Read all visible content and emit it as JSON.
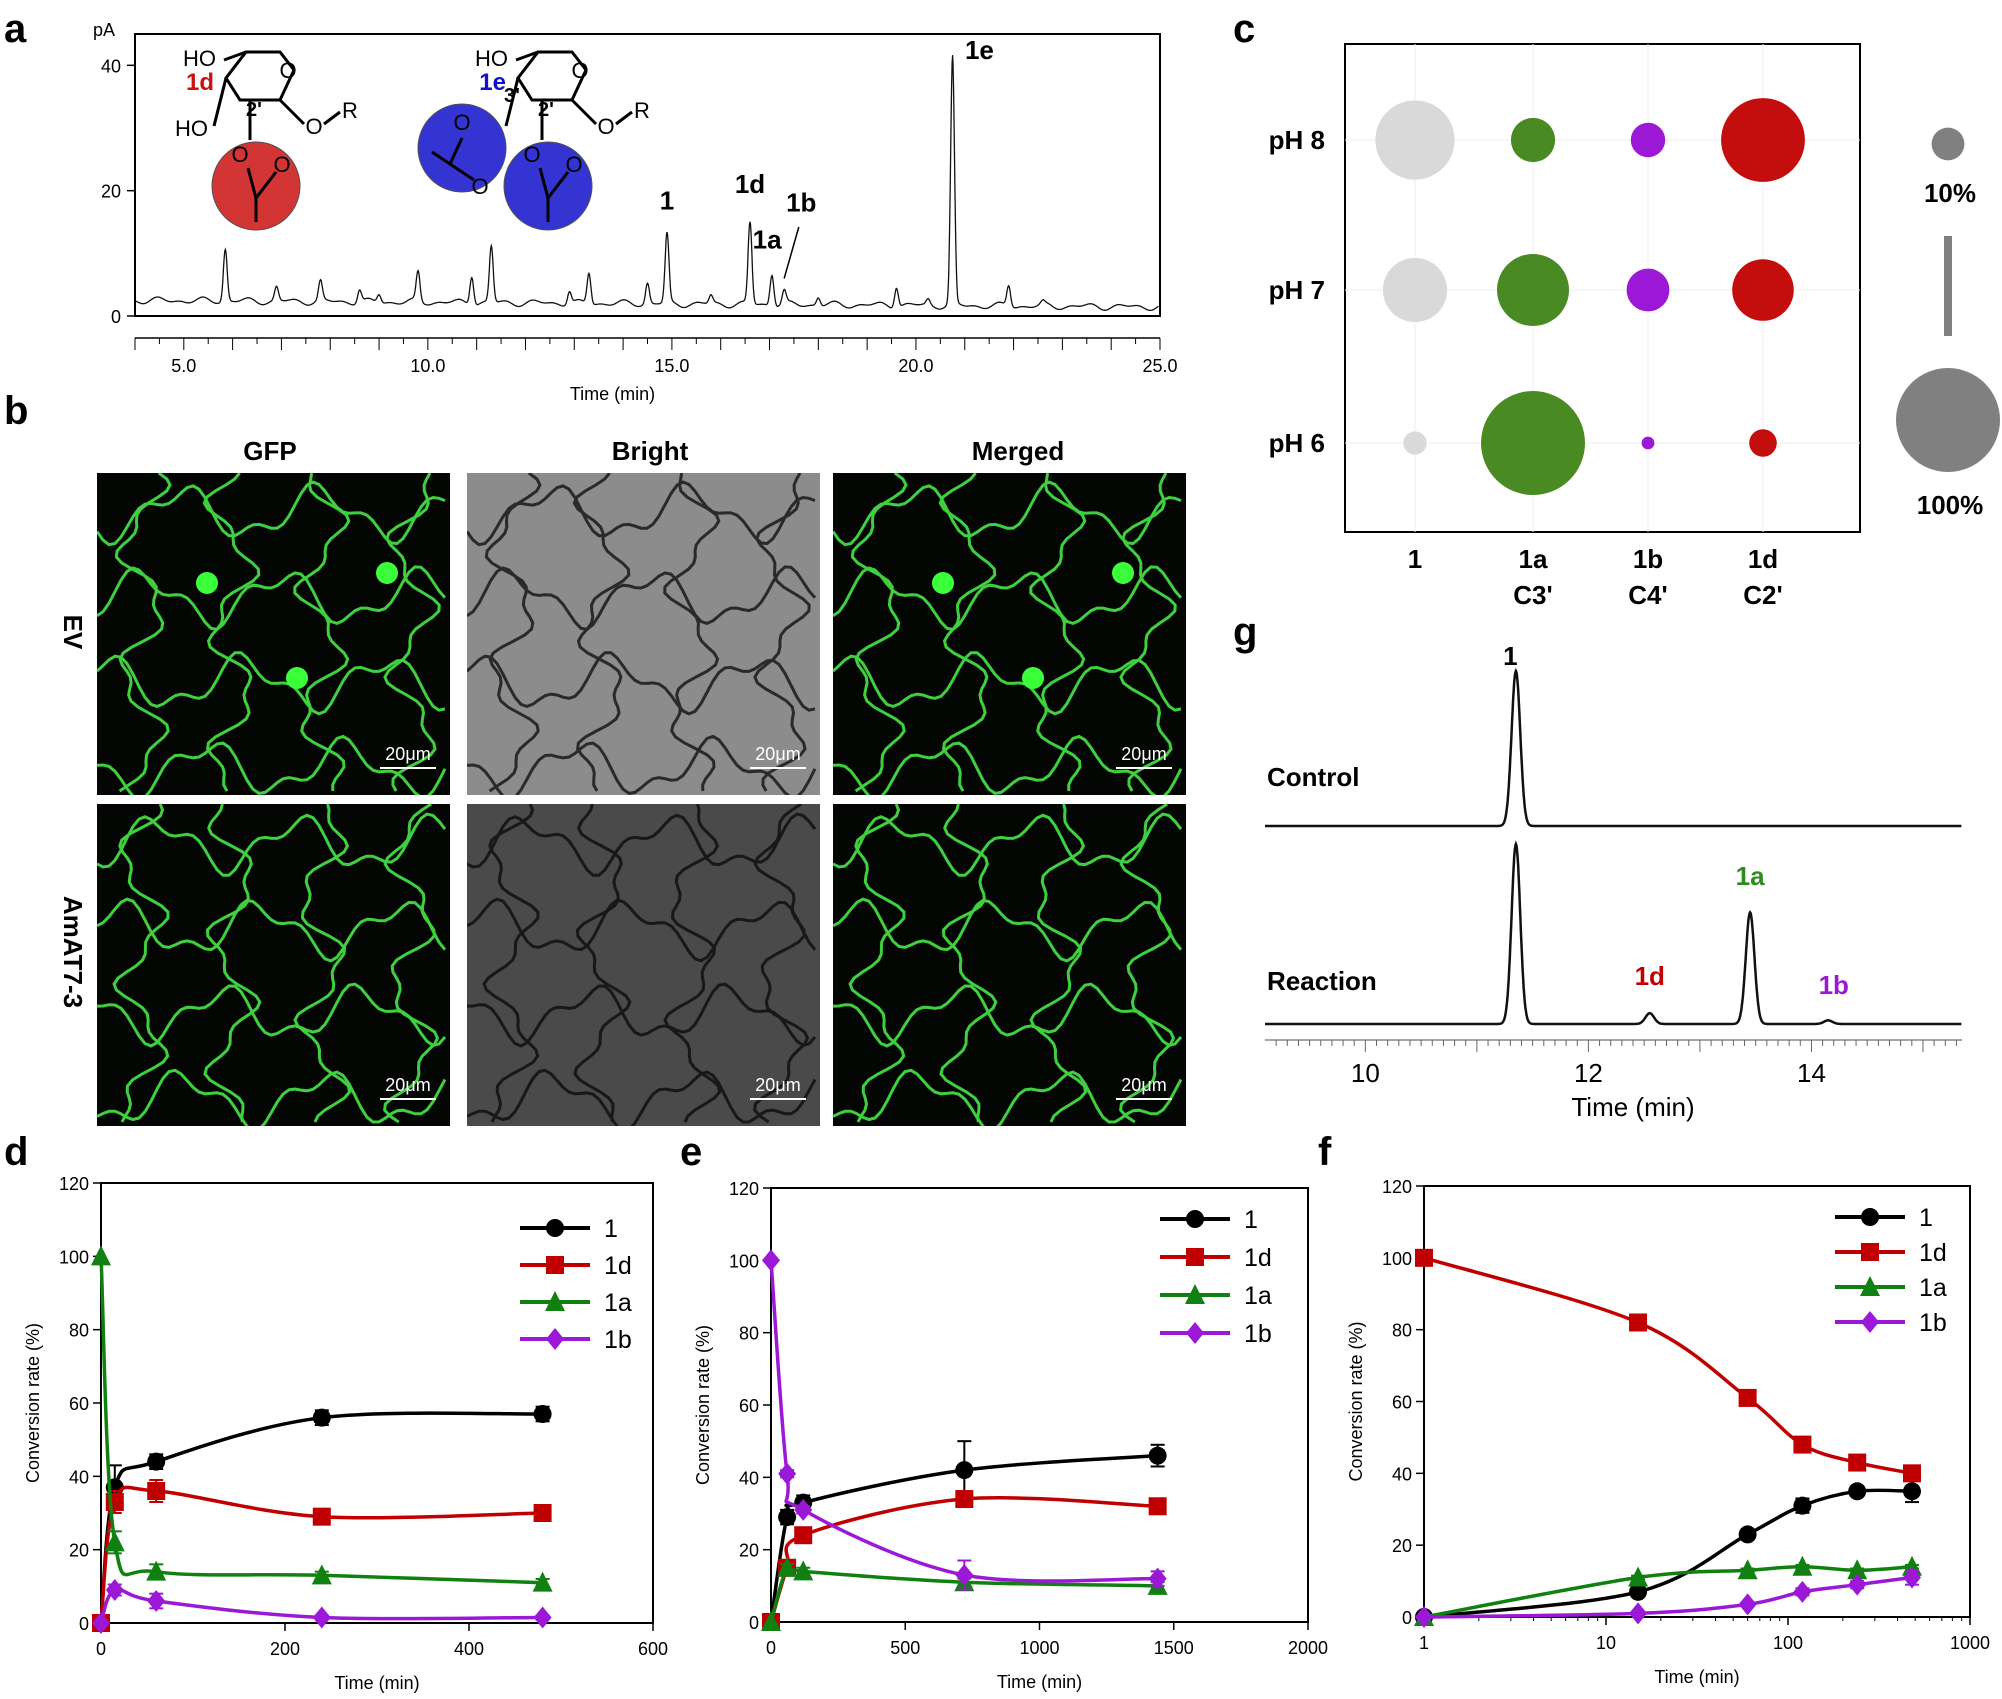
{
  "panels": {
    "a": {
      "label": "a",
      "chart_data": {
        "type": "line",
        "yunit": "pA",
        "xlabel": "Time (min)",
        "xlim": [
          4,
          25
        ],
        "ylim": [
          0,
          45
        ],
        "xticks": [
          "5.0",
          "10.0",
          "15.0",
          "20.0",
          "25.0"
        ],
        "xtick_values": [
          5,
          10,
          15,
          20,
          25
        ],
        "yticks": [
          "0",
          "20",
          "40"
        ],
        "ytick_values": [
          0,
          20,
          40
        ],
        "baseline": 2.5,
        "peaks": [
          {
            "x": 5.85,
            "h": 10.8
          },
          {
            "x": 6.9,
            "h": 4.7
          },
          {
            "x": 7.8,
            "h": 5.6
          },
          {
            "x": 8.6,
            "h": 4.5
          },
          {
            "x": 9.0,
            "h": 3.8
          },
          {
            "x": 9.8,
            "h": 7.2
          },
          {
            "x": 10.9,
            "h": 7.0
          },
          {
            "x": 11.3,
            "h": 11.4
          },
          {
            "x": 12.9,
            "h": 4.5
          },
          {
            "x": 13.3,
            "h": 7.4
          },
          {
            "x": 14.5,
            "h": 5.8
          },
          {
            "x": 14.9,
            "h": 13.5
          },
          {
            "x": 15.8,
            "h": 3.8
          },
          {
            "x": 16.6,
            "h": 15.5
          },
          {
            "x": 17.05,
            "h": 7.5
          },
          {
            "x": 17.3,
            "h": 4.6
          },
          {
            "x": 18.0,
            "h": 3.8
          },
          {
            "x": 19.6,
            "h": 5.7
          },
          {
            "x": 20.25,
            "h": 3.4
          },
          {
            "x": 20.75,
            "h": 42
          },
          {
            "x": 21.9,
            "h": 5.8
          },
          {
            "x": 22.6,
            "h": 3.0
          }
        ],
        "annotations": [
          {
            "text": "1",
            "x": 14.9,
            "y": 17
          },
          {
            "text": "1d",
            "x": 16.6,
            "y": 19.6
          },
          {
            "text": "1b",
            "x": 17.65,
            "y": 16.7
          },
          {
            "text": "1a",
            "x": 16.95,
            "y": 10.8
          },
          {
            "text": "1e",
            "x": 21.3,
            "y": 41
          }
        ],
        "structures": {
          "s1_tag": "1d",
          "s2_tag": "1e",
          "ho": "HO",
          "o": "O",
          "r": "R",
          "pos2": "2'",
          "pos3": "3'",
          "red": "#cc1111",
          "blue": "#1111cc"
        }
      }
    },
    "b": {
      "label": "b",
      "columns": [
        "GFP",
        "Bright",
        "Merged"
      ],
      "rows": [
        "EV",
        "AmAT7-3"
      ],
      "scalebar": "20μm"
    },
    "c": {
      "label": "c",
      "chart_data": {
        "type": "scatter",
        "rows": [
          "pH 8",
          "pH 7",
          "pH 6"
        ],
        "columns": [
          {
            "top": "1",
            "bottom": ""
          },
          {
            "top": "1a",
            "bottom": "C3'"
          },
          {
            "top": "1b",
            "bottom": "C4'"
          },
          {
            "top": "1d",
            "bottom": "C2'"
          }
        ],
        "colors": [
          "#d9d9d9",
          "#4a8a22",
          "#9b18d6",
          "#c40e0e"
        ],
        "values": [
          [
            58,
            18,
            11,
            65
          ],
          [
            38,
            48,
            17,
            35
          ],
          [
            5,
            100,
            1.5,
            7
          ]
        ],
        "legend": {
          "small": "10%",
          "large": "100%",
          "small_value": 10,
          "large_value": 100,
          "color": "#808080"
        }
      }
    },
    "d": {
      "label": "d",
      "chart_data": {
        "type": "line",
        "xlabel": "Time (min)",
        "ylabel": "Conversion  rate (%)",
        "xlim": [
          0,
          600
        ],
        "ylim": [
          0,
          120
        ],
        "xticks": [
          0,
          200,
          400,
          600
        ],
        "yticks": [
          0,
          20,
          40,
          60,
          80,
          100,
          120
        ],
        "series": [
          {
            "name": "1",
            "color": "#000000",
            "marker": "circle",
            "x": [
              0,
              15,
              60,
              240,
              480
            ],
            "y": [
              0,
              37,
              44,
              56,
              57
            ],
            "err": [
              0,
              6,
              2,
              2,
              2
            ]
          },
          {
            "name": "1d",
            "color": "#c00000",
            "marker": "square",
            "x": [
              0,
              15,
              60,
              240,
              480
            ],
            "y": [
              0,
              33,
              36,
              29,
              30
            ],
            "err": [
              0,
              3,
              3,
              1,
              1
            ]
          },
          {
            "name": "1a",
            "color": "#108010",
            "marker": "triangle",
            "x": [
              0,
              15,
              60,
              240,
              480
            ],
            "y": [
              100,
              22,
              14,
              13,
              11
            ],
            "err": [
              0,
              3,
              2,
              1,
              1
            ]
          },
          {
            "name": "1b",
            "color": "#9b18d6",
            "marker": "diamond",
            "x": [
              0,
              15,
              60,
              240,
              480
            ],
            "y": [
              0,
              9,
              6,
              1.5,
              1.5
            ],
            "err": [
              0,
              1.5,
              2,
              0.5,
              0.5
            ]
          }
        ]
      }
    },
    "e": {
      "label": "e",
      "chart_data": {
        "type": "line",
        "xlabel": "Time (min)",
        "ylabel": "Conversion   rate (%)",
        "xlim": [
          0,
          2000
        ],
        "ylim": [
          0,
          120
        ],
        "xticks": [
          0,
          500,
          1000,
          1500,
          2000
        ],
        "yticks": [
          0,
          20,
          40,
          60,
          80,
          100,
          120
        ],
        "series": [
          {
            "name": "1",
            "color": "#000000",
            "marker": "circle",
            "x": [
              0,
              60,
              120,
              720,
              1440
            ],
            "y": [
              0,
              29,
              33,
              42,
              46
            ],
            "err": [
              0,
              2,
              2,
              8,
              3
            ]
          },
          {
            "name": "1d",
            "color": "#c00000",
            "marker": "square",
            "x": [
              0,
              60,
              120,
              720,
              1440
            ],
            "y": [
              0,
              15,
              24,
              34,
              32
            ],
            "err": [
              0,
              1,
              1,
              2,
              1
            ]
          },
          {
            "name": "1a",
            "color": "#108010",
            "marker": "triangle",
            "x": [
              0,
              60,
              120,
              720,
              1440
            ],
            "y": [
              0,
              15,
              14,
              11,
              10
            ],
            "err": [
              0,
              1,
              1,
              1,
              1
            ]
          },
          {
            "name": "1b",
            "color": "#9b18d6",
            "marker": "diamond",
            "x": [
              0,
              60,
              120,
              720,
              1440
            ],
            "y": [
              100,
              41,
              31,
              13,
              12
            ],
            "err": [
              0,
              1,
              1,
              4,
              2
            ]
          }
        ]
      }
    },
    "f": {
      "label": "f",
      "chart_data": {
        "type": "line",
        "xscale": "log",
        "xlabel": "Time (min)",
        "ylabel": "Conversion  rate (%)",
        "xlim": [
          1,
          1000
        ],
        "ylim": [
          0,
          120
        ],
        "xticks": [
          1,
          10,
          100,
          1000
        ],
        "yticks": [
          0,
          20,
          40,
          60,
          80,
          100,
          120
        ],
        "series": [
          {
            "name": "1",
            "color": "#000000",
            "marker": "circle",
            "x": [
              1,
              15,
              60,
              120,
              240,
              480
            ],
            "y": [
              0,
              7,
              23,
              31,
              35,
              35
            ],
            "err": [
              0,
              0.5,
              1,
              2,
              1,
              3
            ]
          },
          {
            "name": "1d",
            "color": "#c00000",
            "marker": "square",
            "x": [
              1,
              15,
              60,
              120,
              240,
              480
            ],
            "y": [
              100,
              82,
              61,
              48,
              43,
              40
            ],
            "err": [
              0,
              0.5,
              1.5,
              1.5,
              0.5,
              0.5
            ]
          },
          {
            "name": "1a",
            "color": "#108010",
            "marker": "triangle",
            "x": [
              1,
              15,
              60,
              120,
              240,
              480
            ],
            "y": [
              0,
              11,
              13,
              14,
              13,
              14
            ],
            "err": [
              0,
              0.5,
              0.5,
              0.5,
              0.5,
              0.5
            ]
          },
          {
            "name": "1b",
            "color": "#9b18d6",
            "marker": "diamond",
            "x": [
              1,
              15,
              60,
              120,
              240,
              480
            ],
            "y": [
              0,
              1,
              3.5,
              7,
              9,
              11
            ],
            "err": [
              0,
              0.3,
              0.5,
              1,
              1,
              2
            ]
          }
        ]
      }
    },
    "g": {
      "label": "g",
      "chart_data": {
        "type": "line",
        "xlabel": "Time (min)",
        "xlim": [
          9.1,
          15.35
        ],
        "xticks": [
          10,
          12,
          14
        ],
        "traces": [
          {
            "name": "Control",
            "peaks": [
              {
                "x": 11.35,
                "h": 1.0
              }
            ]
          },
          {
            "name": "Reaction",
            "peaks": [
              {
                "x": 11.35,
                "h": 1.0
              },
              {
                "x": 12.55,
                "h": 0.06
              },
              {
                "x": 13.45,
                "h": 0.62
              },
              {
                "x": 14.15,
                "h": 0.02
              }
            ]
          }
        ],
        "annotations": [
          {
            "text": "1",
            "x": 11.3,
            "color": "#000000"
          },
          {
            "text": "1d",
            "x": 12.55,
            "color": "#c00000"
          },
          {
            "text": "1a",
            "x": 13.45,
            "color": "#2e8b1e"
          },
          {
            "text": "1b",
            "x": 14.2,
            "color": "#9b18d6"
          }
        ]
      }
    }
  }
}
